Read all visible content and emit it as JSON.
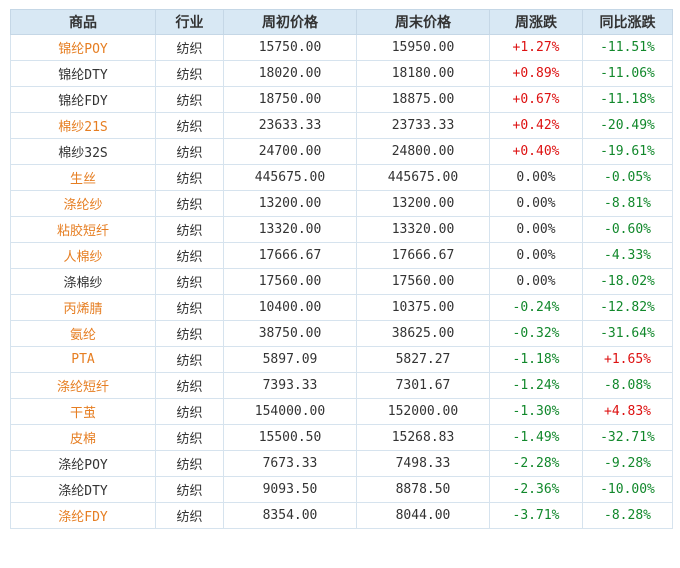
{
  "headers": [
    "商品",
    "行业",
    "周初价格",
    "周末价格",
    "周涨跌",
    "同比涨跌"
  ],
  "colors": {
    "highlight_name": "#e67e22",
    "up": "#dd1111",
    "down": "#11882b",
    "header_bg": "#d8e8f4"
  },
  "rows": [
    {
      "name": "锦纶POY",
      "industry": "纺织",
      "start": "15750.00",
      "end": "15950.00",
      "week": "+1.27%",
      "yoy": "-11.51%"
    },
    {
      "name": "锦纶DTY",
      "industry": "纺织",
      "start": "18020.00",
      "end": "18180.00",
      "week": "+0.89%",
      "yoy": "-11.06%"
    },
    {
      "name": "锦纶FDY",
      "industry": "纺织",
      "start": "18750.00",
      "end": "18875.00",
      "week": "+0.67%",
      "yoy": "-11.18%"
    },
    {
      "name": "棉纱21S",
      "industry": "纺织",
      "start": "23633.33",
      "end": "23733.33",
      "week": "+0.42%",
      "yoy": "-20.49%"
    },
    {
      "name": "棉纱32S",
      "industry": "纺织",
      "start": "24700.00",
      "end": "24800.00",
      "week": "+0.40%",
      "yoy": "-19.61%"
    },
    {
      "name": "生丝",
      "industry": "纺织",
      "start": "445675.00",
      "end": "445675.00",
      "week": "0.00%",
      "yoy": "-0.05%"
    },
    {
      "name": "涤纶纱",
      "industry": "纺织",
      "start": "13200.00",
      "end": "13200.00",
      "week": "0.00%",
      "yoy": "-8.81%"
    },
    {
      "name": "粘胶短纤",
      "industry": "纺织",
      "start": "13320.00",
      "end": "13320.00",
      "week": "0.00%",
      "yoy": "-0.60%"
    },
    {
      "name": "人棉纱",
      "industry": "纺织",
      "start": "17666.67",
      "end": "17666.67",
      "week": "0.00%",
      "yoy": "-4.33%"
    },
    {
      "name": "涤棉纱",
      "industry": "纺织",
      "start": "17560.00",
      "end": "17560.00",
      "week": "0.00%",
      "yoy": "-18.02%"
    },
    {
      "name": "丙烯腈",
      "industry": "纺织",
      "start": "10400.00",
      "end": "10375.00",
      "week": "-0.24%",
      "yoy": "-12.82%"
    },
    {
      "name": "氨纶",
      "industry": "纺织",
      "start": "38750.00",
      "end": "38625.00",
      "week": "-0.32%",
      "yoy": "-31.64%"
    },
    {
      "name": "PTA",
      "industry": "纺织",
      "start": "5897.09",
      "end": "5827.27",
      "week": "-1.18%",
      "yoy": "+1.65%"
    },
    {
      "name": "涤纶短纤",
      "industry": "纺织",
      "start": "7393.33",
      "end": "7301.67",
      "week": "-1.24%",
      "yoy": "-8.08%"
    },
    {
      "name": "干茧",
      "industry": "纺织",
      "start": "154000.00",
      "end": "152000.00",
      "week": "-1.30%",
      "yoy": "+4.83%"
    },
    {
      "name": "皮棉",
      "industry": "纺织",
      "start": "15500.50",
      "end": "15268.83",
      "week": "-1.49%",
      "yoy": "-32.71%"
    },
    {
      "name": "涤纶POY",
      "industry": "纺织",
      "start": "7673.33",
      "end": "7498.33",
      "week": "-2.28%",
      "yoy": "-9.28%"
    },
    {
      "name": "涤纶DTY",
      "industry": "纺织",
      "start": "9093.50",
      "end": "8878.50",
      "week": "-2.36%",
      "yoy": "-10.00%"
    },
    {
      "name": "涤纶FDY",
      "industry": "纺织",
      "start": "8354.00",
      "end": "8044.00",
      "week": "-3.71%",
      "yoy": "-8.28%"
    }
  ]
}
